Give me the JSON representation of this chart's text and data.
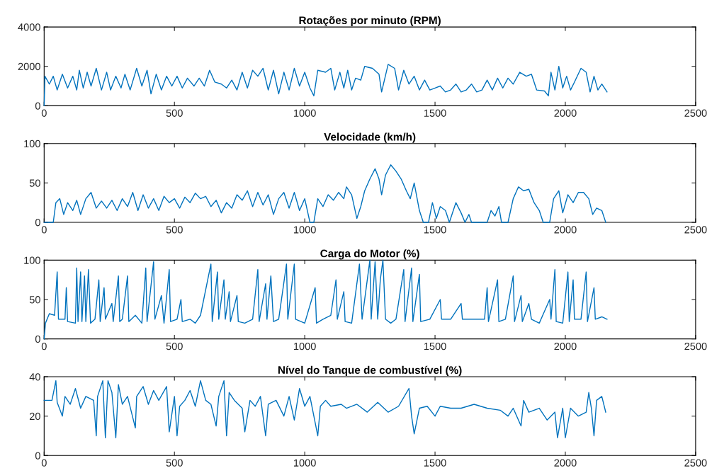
{
  "chart_data": [
    {
      "type": "line",
      "title": "Rotações por minuto (RPM)",
      "xlim": [
        0,
        2500
      ],
      "xticks": [
        0,
        500,
        1000,
        1500,
        2000,
        2500
      ],
      "ylim": [
        0,
        4000
      ],
      "yticks": [
        0,
        2000,
        4000
      ],
      "grid": false,
      "line_style": "solid",
      "x": [
        0,
        3,
        20,
        35,
        50,
        70,
        90,
        110,
        125,
        135,
        150,
        165,
        180,
        200,
        220,
        240,
        255,
        275,
        295,
        310,
        330,
        355,
        375,
        395,
        410,
        430,
        450,
        470,
        490,
        510,
        530,
        550,
        575,
        595,
        615,
        635,
        655,
        680,
        700,
        720,
        740,
        760,
        780,
        800,
        820,
        840,
        860,
        880,
        900,
        920,
        940,
        960,
        980,
        1000,
        1020,
        1035,
        1050,
        1080,
        1100,
        1115,
        1135,
        1150,
        1165,
        1180,
        1195,
        1215,
        1230,
        1260,
        1285,
        1295,
        1320,
        1345,
        1360,
        1380,
        1400,
        1420,
        1440,
        1460,
        1480,
        1500,
        1520,
        1540,
        1560,
        1580,
        1600,
        1620,
        1640,
        1660,
        1680,
        1700,
        1720,
        1740,
        1760,
        1780,
        1800,
        1825,
        1850,
        1870,
        1890,
        1920,
        1935,
        1945,
        1960,
        1975,
        1990,
        2005,
        2020,
        2035,
        2060,
        2080,
        2095,
        2110,
        2125,
        2140,
        2160
      ],
      "series": [
        {
          "color": "#0072bd",
          "values": [
            0,
            1500,
            1100,
            1500,
            800,
            1600,
            900,
            1500,
            800,
            1800,
            900,
            1700,
            1000,
            1900,
            800,
            1700,
            800,
            1500,
            900,
            1600,
            800,
            1900,
            1000,
            1800,
            600,
            1600,
            800,
            1500,
            1000,
            1500,
            900,
            1400,
            1000,
            1400,
            1000,
            1800,
            1200,
            1100,
            900,
            1300,
            800,
            1700,
            900,
            1800,
            1500,
            1900,
            800,
            1800,
            600,
            1700,
            800,
            1900,
            1000,
            1700,
            900,
            500,
            1800,
            1700,
            1900,
            800,
            1700,
            900,
            1800,
            800,
            1400,
            1300,
            2000,
            1900,
            1600,
            700,
            2100,
            1900,
            800,
            1800,
            1100,
            1500,
            800,
            1300,
            800,
            900,
            1000,
            700,
            800,
            1100,
            700,
            800,
            1100,
            700,
            800,
            1300,
            800,
            1400,
            900,
            1400,
            1100,
            1700,
            1500,
            1600,
            800,
            750,
            500,
            1700,
            800,
            2000,
            900,
            1500,
            800,
            1200,
            1900,
            1700,
            700,
            1500,
            800,
            1100,
            700
          ]
        }
      ]
    },
    {
      "type": "line",
      "title": "Velocidade (km/h)",
      "xlim": [
        0,
        2500
      ],
      "xticks": [
        0,
        500,
        1000,
        1500,
        2000,
        2500
      ],
      "ylim": [
        0,
        100
      ],
      "yticks": [
        0,
        50,
        100
      ],
      "grid": false,
      "line_style": "solid",
      "x": [
        0,
        35,
        45,
        60,
        75,
        90,
        110,
        125,
        140,
        160,
        180,
        200,
        220,
        240,
        260,
        280,
        300,
        320,
        340,
        360,
        380,
        400,
        420,
        440,
        460,
        480,
        500,
        520,
        540,
        560,
        580,
        600,
        620,
        640,
        660,
        680,
        700,
        720,
        740,
        760,
        780,
        800,
        820,
        840,
        860,
        880,
        900,
        920,
        940,
        960,
        980,
        1000,
        1020,
        1035,
        1050,
        1070,
        1090,
        1110,
        1130,
        1150,
        1160,
        1180,
        1200,
        1215,
        1230,
        1250,
        1270,
        1285,
        1295,
        1310,
        1330,
        1350,
        1370,
        1390,
        1405,
        1420,
        1440,
        1455,
        1475,
        1490,
        1505,
        1520,
        1540,
        1555,
        1580,
        1600,
        1615,
        1630,
        1640,
        1700,
        1715,
        1730,
        1745,
        1755,
        1780,
        1800,
        1820,
        1840,
        1860,
        1880,
        1900,
        1915,
        1940,
        1955,
        1975,
        1990,
        2010,
        2030,
        2050,
        2070,
        2090,
        2105,
        2120,
        2140,
        2155
      ],
      "series": [
        {
          "color": "#0072bd",
          "values": [
            0,
            0,
            25,
            30,
            10,
            25,
            15,
            28,
            10,
            30,
            38,
            18,
            27,
            18,
            28,
            15,
            30,
            20,
            38,
            15,
            35,
            18,
            30,
            15,
            33,
            25,
            30,
            18,
            32,
            25,
            37,
            30,
            33,
            20,
            28,
            12,
            25,
            18,
            35,
            28,
            40,
            20,
            38,
            22,
            35,
            10,
            30,
            38,
            18,
            38,
            15,
            30,
            0,
            0,
            30,
            20,
            35,
            28,
            38,
            30,
            45,
            35,
            5,
            20,
            40,
            55,
            68,
            55,
            35,
            60,
            73,
            65,
            55,
            40,
            30,
            50,
            15,
            0,
            0,
            25,
            5,
            20,
            15,
            0,
            25,
            12,
            0,
            10,
            0,
            0,
            15,
            8,
            20,
            0,
            0,
            30,
            45,
            40,
            42,
            25,
            15,
            0,
            0,
            30,
            40,
            12,
            35,
            25,
            38,
            38,
            30,
            10,
            18,
            15,
            0
          ]
        }
      ]
    },
    {
      "type": "line",
      "title": "Carga do Motor (%)",
      "xlim": [
        0,
        2500
      ],
      "xticks": [
        0,
        500,
        1000,
        1500,
        2000,
        2500
      ],
      "ylim": [
        0,
        100
      ],
      "yticks": [
        0,
        50,
        100
      ],
      "grid": false,
      "line_style": "solid",
      "x": [
        0,
        5,
        20,
        40,
        50,
        55,
        80,
        85,
        90,
        120,
        125,
        130,
        140,
        145,
        155,
        160,
        170,
        178,
        195,
        210,
        215,
        230,
        235,
        260,
        265,
        285,
        290,
        300,
        320,
        325,
        350,
        375,
        390,
        395,
        420,
        425,
        450,
        460,
        480,
        485,
        510,
        525,
        530,
        560,
        580,
        600,
        640,
        645,
        665,
        670,
        690,
        695,
        710,
        715,
        740,
        745,
        770,
        800,
        820,
        825,
        850,
        855,
        870,
        880,
        900,
        930,
        935,
        960,
        965,
        1000,
        1040,
        1045,
        1070,
        1100,
        1120,
        1125,
        1150,
        1155,
        1180,
        1210,
        1220,
        1250,
        1255,
        1270,
        1280,
        1290,
        1300,
        1310,
        1330,
        1350,
        1380,
        1385,
        1410,
        1415,
        1440,
        1445,
        1480,
        1520,
        1525,
        1560,
        1600,
        1605,
        1650,
        1690,
        1700,
        1705,
        1740,
        1745,
        1770,
        1800,
        1805,
        1830,
        1835,
        1860,
        1870,
        1900,
        1940,
        1945,
        1960,
        1965,
        1990,
        2010,
        2015,
        2030,
        2035,
        2060,
        2080,
        2085,
        2110,
        2115,
        2140,
        2160
      ],
      "series": [
        {
          "color": "#0072bd",
          "values": [
            0,
            20,
            32,
            30,
            85,
            25,
            25,
            65,
            22,
            20,
            90,
            22,
            85,
            22,
            80,
            22,
            88,
            20,
            25,
            75,
            22,
            65,
            25,
            45,
            22,
            80,
            22,
            25,
            80,
            22,
            30,
            20,
            90,
            22,
            98,
            25,
            55,
            20,
            88,
            22,
            25,
            50,
            22,
            25,
            20,
            30,
            95,
            22,
            85,
            25,
            75,
            25,
            60,
            22,
            55,
            22,
            20,
            25,
            88,
            22,
            70,
            25,
            80,
            22,
            25,
            95,
            25,
            95,
            25,
            20,
            65,
            20,
            25,
            30,
            75,
            25,
            60,
            22,
            20,
            95,
            25,
            100,
            25,
            98,
            25,
            75,
            100,
            25,
            20,
            25,
            88,
            22,
            90,
            22,
            82,
            22,
            25,
            50,
            25,
            25,
            45,
            25,
            25,
            25,
            65,
            22,
            75,
            22,
            25,
            80,
            22,
            55,
            22,
            45,
            25,
            20,
            50,
            25,
            88,
            22,
            20,
            85,
            22,
            75,
            25,
            25,
            85,
            22,
            65,
            25,
            28,
            25
          ]
        }
      ]
    },
    {
      "type": "line",
      "title": "Nível do Tanque de combustível (%)",
      "xlim": [
        0,
        2500
      ],
      "xticks": [
        0,
        500,
        1000,
        1500,
        2000,
        2500
      ],
      "ylim": [
        0,
        40
      ],
      "yticks": [
        0,
        20,
        40
      ],
      "grid": false,
      "line_style": "solid",
      "x": [
        0,
        30,
        45,
        50,
        70,
        80,
        100,
        120,
        140,
        160,
        190,
        200,
        205,
        225,
        235,
        245,
        260,
        275,
        285,
        300,
        320,
        350,
        355,
        380,
        400,
        420,
        440,
        470,
        480,
        500,
        510,
        520,
        540,
        560,
        580,
        600,
        620,
        640,
        660,
        670,
        690,
        700,
        710,
        730,
        760,
        770,
        790,
        810,
        830,
        850,
        860,
        890,
        920,
        940,
        960,
        980,
        1000,
        1020,
        1050,
        1060,
        1080,
        1100,
        1140,
        1160,
        1200,
        1240,
        1280,
        1320,
        1360,
        1400,
        1410,
        1420,
        1440,
        1470,
        1500,
        1520,
        1560,
        1600,
        1650,
        1700,
        1750,
        1780,
        1800,
        1830,
        1840,
        1860,
        1900,
        1930,
        1960,
        1970,
        1990,
        2000,
        2020,
        2050,
        2080,
        2090,
        2100,
        2110,
        2120,
        2140,
        2155
      ],
      "series": [
        {
          "color": "#0072bd",
          "values": [
            28,
            28,
            38,
            27,
            20,
            30,
            26,
            34,
            24,
            30,
            28,
            10,
            30,
            38,
            9,
            38,
            32,
            9,
            36,
            26,
            30,
            14,
            30,
            35,
            26,
            33,
            28,
            35,
            12,
            30,
            10,
            25,
            28,
            33,
            25,
            38,
            28,
            26,
            15,
            30,
            38,
            10,
            32,
            28,
            24,
            12,
            28,
            25,
            30,
            10,
            26,
            28,
            20,
            30,
            18,
            34,
            25,
            30,
            10,
            25,
            28,
            25,
            26,
            24,
            26,
            22,
            27,
            22,
            25,
            34,
            20,
            11,
            24,
            25,
            20,
            25,
            24,
            24,
            26,
            24,
            23,
            20,
            24,
            15,
            28,
            22,
            24,
            18,
            22,
            9,
            24,
            9,
            24,
            20,
            22,
            32,
            24,
            10,
            28,
            30,
            22
          ]
        }
      ]
    }
  ]
}
